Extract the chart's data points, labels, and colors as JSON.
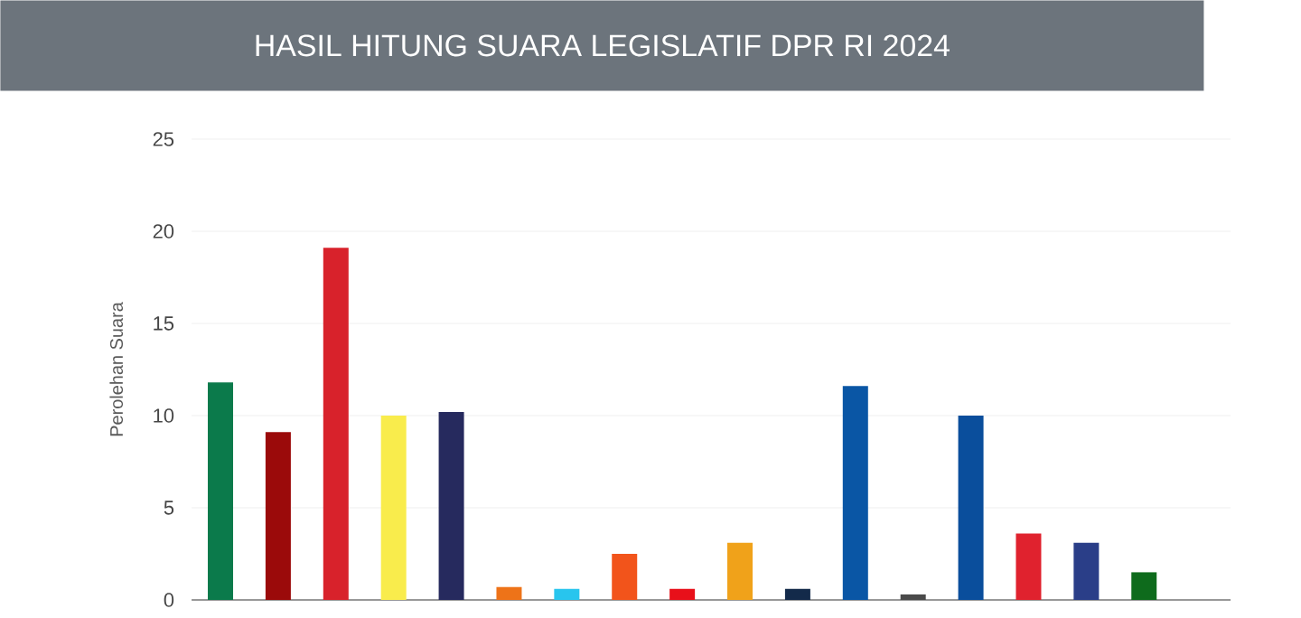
{
  "chart_data": {
    "type": "bar",
    "title": "HASIL HITUNG SUARA LEGISLATIF DPR RI 2024",
    "ylabel": "Perolehan Suara",
    "categories": [
      null,
      null,
      null,
      null,
      null,
      null,
      null,
      null,
      null,
      null,
      null,
      null,
      null,
      null,
      null,
      null,
      null,
      null
    ],
    "values": [
      11.8,
      9.1,
      19.1,
      10.0,
      10.2,
      0.7,
      0.6,
      2.5,
      0.6,
      3.1,
      0.6,
      11.6,
      0.3,
      10.0,
      3.6,
      3.1,
      1.5,
      null
    ],
    "colors": [
      "#0b7a4b",
      "#9b0a0a",
      "#d8222b",
      "#f9ec4c",
      "#262a5e",
      "#ee7318",
      "#28c5ee",
      "#f2541b",
      "#e8101a",
      "#f0a21a",
      "#132a4a",
      "#0a56a5",
      "#4a4a4a",
      "#0a4e9c",
      "#e0222e",
      "#2a3e88",
      "#0e6b1c",
      "#888888"
    ],
    "ylim": [
      0,
      25
    ],
    "yticks": [
      0,
      5,
      10,
      15,
      20,
      25
    ],
    "grid": "y"
  }
}
